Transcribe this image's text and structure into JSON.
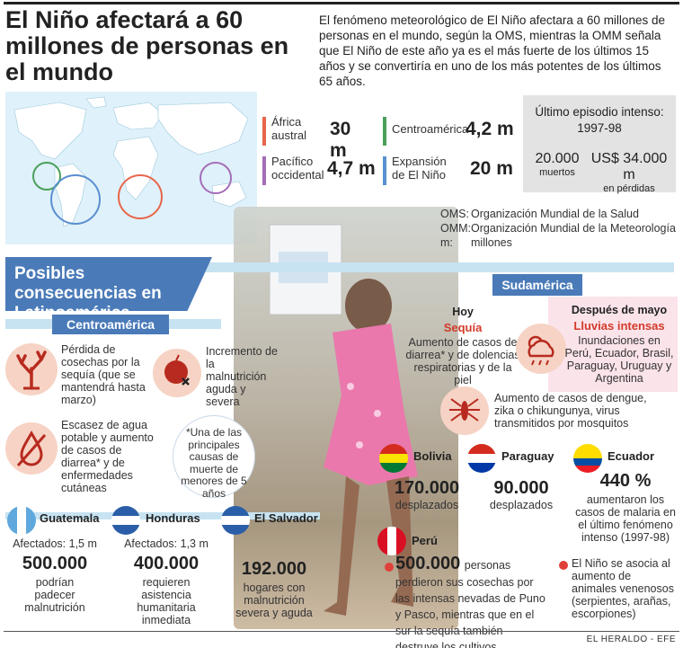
{
  "title": "El Niño afectará a 60 millones de personas en el mundo",
  "intro": "El fenómeno meteorológico de El Niño afectara a 60 millones de personas en el mundo, según la OMS, mientras la OMM señala que El Niño de este año ya es el más fuerte de los últimos 15 años y se convertiría en uno de los más potentes de los últimos 65 años.",
  "regions": [
    {
      "label": "África austral",
      "value": "30 m",
      "color": "#e8654a"
    },
    {
      "label": "Centroamérica",
      "value": "4,2 m",
      "color": "#4aa05a"
    },
    {
      "label": "Pacífico occidental",
      "value": "4,7 m",
      "color": "#a46db8"
    },
    {
      "label": "Expansión de El Niño",
      "value": "20 m",
      "color": "#5a8fd0"
    }
  ],
  "last_episode": {
    "heading": "Último episodio intenso: 1997-98",
    "deaths_value": "20.000",
    "deaths_label": "muertos",
    "losses_value": "US$ 34.000 m",
    "losses_label": "en pérdidas"
  },
  "definitions": [
    {
      "abbr": "OMS:",
      "text": "Organización Mundial de la Salud"
    },
    {
      "abbr": "OMM:",
      "text": "Organización Mundial de la Meteorología"
    },
    {
      "abbr": "m:",
      "text": "millones"
    }
  ],
  "section_title": "Posibles consecuencias en Latinoamérica",
  "centroamerica": {
    "header": "Centroamérica",
    "items": [
      "Pérdida de cosechas por la sequía (que se mantendrá hasta marzo)",
      "Incremento de la malnutrición aguda y severa",
      "Escasez de agua potable y aumento de casos de diarrea* y de enfermedades cutáneas"
    ],
    "note": "*Una de las principales causas de muerte de menores de 5 años"
  },
  "countries_ca": [
    {
      "name": "Guatemala",
      "affected": "Afectados: 1,5 m",
      "value": "500.000",
      "desc": "podrían padecer malnutrición"
    },
    {
      "name": "Honduras",
      "affected": "Afectados: 1,3 m",
      "value": "400.000",
      "desc": "requieren asistencia humanitaria inmediata"
    },
    {
      "name": "El Salvador",
      "affected": "",
      "value": "192.000",
      "desc": "hogares con malnutrición severa y aguda"
    }
  ],
  "sudamerica": {
    "header": "Sudamérica",
    "hoy_label": "Hoy",
    "hoy_title": "Sequía",
    "hoy_text": "Aumento de casos de diarrea* y de dolencias respiratorias y de la piel",
    "mayo_label": "Después de mayo",
    "mayo_title": "Lluvias intensas",
    "mayo_text": "Inundaciones en Perú, Ecuador, Brasil, Paraguay, Uruguay y Argentina",
    "dengue_text": "Aumento de casos de dengue, zika o chikungunya, virus transmitidos por mosquitos"
  },
  "countries_sa": [
    {
      "name": "Bolivia",
      "value": "170.000",
      "desc": "desplazados"
    },
    {
      "name": "Paraguay",
      "value": "90.000",
      "desc": "desplazados"
    },
    {
      "name": "Ecuador",
      "value": "440 %",
      "desc": "aumentaron los casos de malaria en el último fenómeno intenso (1997-98)"
    }
  ],
  "peru": {
    "name": "Perú",
    "value": "500.000",
    "desc": "personas perdieron sus cosechas por las intensas nevadas de Puno y Pasco, mientras que en el sur la sequía también destruye los cultivos"
  },
  "animals_note": "El Niño se asocia al aumento de animales venenosos (serpientes, arañas, escorpiones)",
  "credit": "EL HERALDO - EFE",
  "colors": {
    "accent_blue": "#4a7ab8",
    "light_blue": "#c7e3f2",
    "red": "#d23a2a",
    "peach": "#f6d3c4"
  }
}
